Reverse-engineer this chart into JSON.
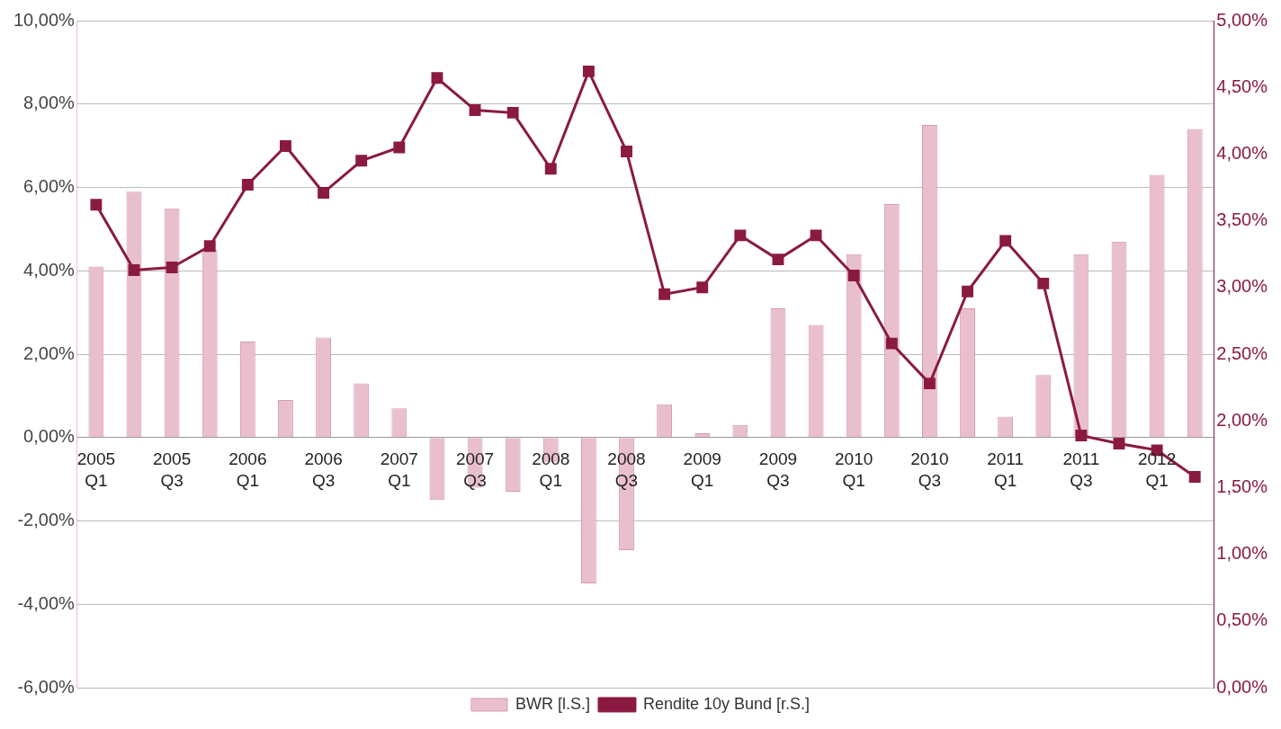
{
  "chart_data": {
    "type": "bar",
    "categories": [
      "2005 Q1",
      null,
      "2005 Q3",
      null,
      "2006 Q1",
      null,
      "2006 Q3",
      null,
      "2007 Q1",
      null,
      "2007 Q3",
      null,
      "2008 Q1",
      null,
      "2008 Q3",
      null,
      "2009 Q1",
      null,
      "2009 Q3",
      null,
      "2010 Q1",
      null,
      "2010 Q3",
      null,
      "2011 Q1",
      null,
      "2011 Q3",
      null,
      "2012 Q1",
      null
    ],
    "series": [
      {
        "name": "BWR [l.S.]",
        "color": "#e9bfcb",
        "values": [
          4.1,
          5.9,
          5.5,
          4.5,
          2.3,
          0.9,
          2.4,
          1.3,
          0.7,
          -1.5,
          -1.2,
          -1.3,
          -0.6,
          -3.5,
          -2.7,
          0.8,
          0.1,
          0.3,
          3.1,
          2.7,
          4.4,
          5.6,
          7.5,
          3.1,
          0.5,
          1.5,
          4.4,
          4.7,
          6.3,
          7.4
        ]
      },
      {
        "name": "Rendite 10y Bund [r.S.]",
        "type": "line",
        "axis": "y2",
        "color": "#8b1a42",
        "values": [
          3.62,
          3.13,
          3.15,
          3.31,
          3.77,
          4.06,
          3.71,
          3.95,
          4.05,
          4.57,
          4.33,
          4.31,
          3.89,
          4.62,
          4.02,
          2.95,
          3.0,
          3.39,
          3.21,
          3.39,
          3.09,
          2.58,
          2.28,
          2.97,
          3.35,
          3.03,
          1.89,
          1.83,
          1.78,
          1.58
        ]
      }
    ],
    "ylim": [
      -6,
      10
    ],
    "yticks": [
      {
        "value": -6,
        "label": "-6,00%"
      },
      {
        "value": -4,
        "label": "-4,00%"
      },
      {
        "value": -2,
        "label": "-2,00%"
      },
      {
        "value": 0,
        "label": "0,00%"
      },
      {
        "value": 2,
        "label": "2,00%"
      },
      {
        "value": 4,
        "label": "4,00%"
      },
      {
        "value": 6,
        "label": "6,00%"
      },
      {
        "value": 8,
        "label": "8,00%"
      },
      {
        "value": 10,
        "label": "10,00%"
      }
    ],
    "y2lim": [
      0,
      5
    ],
    "y2ticks": [
      {
        "value": 0,
        "label": "0,00%"
      },
      {
        "value": 0.5,
        "label": "0,50%"
      },
      {
        "value": 1,
        "label": "1,00%"
      },
      {
        "value": 1.5,
        "label": "1,50%"
      },
      {
        "value": 2,
        "label": "2,00%"
      },
      {
        "value": 2.5,
        "label": "2,50%"
      },
      {
        "value": 3,
        "label": "3,00%"
      },
      {
        "value": 3.5,
        "label": "3,50%"
      },
      {
        "value": 4,
        "label": "4,00%"
      },
      {
        "value": 4.5,
        "label": "4,50%"
      },
      {
        "value": 5,
        "label": "5,00%"
      }
    ],
    "grid": "y",
    "legend": "bottom",
    "marker": "square",
    "line_style": "solid"
  }
}
